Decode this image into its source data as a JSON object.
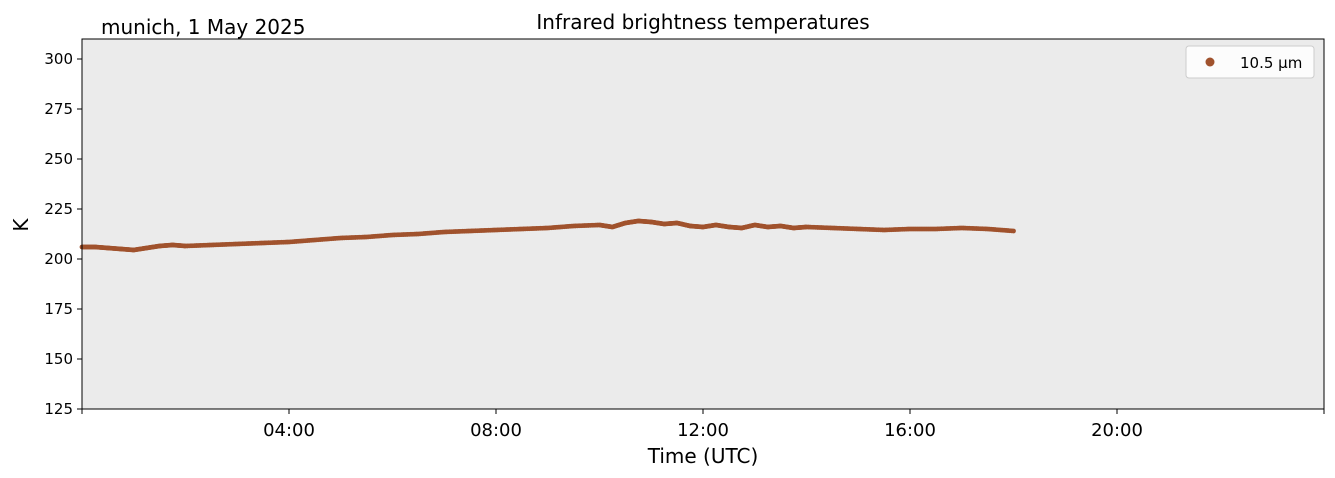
{
  "chart_data": {
    "type": "scatter",
    "title": "Infrared brightness temperatures",
    "subtitle": "munich, 1 May 2025",
    "xlabel": "Time (UTC)",
    "ylabel": "K",
    "xlim_hours": [
      0,
      24
    ],
    "ylim": [
      125,
      310
    ],
    "x_ticks_hours": [
      0,
      4,
      8,
      12,
      16,
      20,
      24
    ],
    "x_tick_labels": [
      "",
      "04:00",
      "08:00",
      "12:00",
      "16:00",
      "20:00",
      ""
    ],
    "y_ticks": [
      125,
      150,
      175,
      200,
      225,
      250,
      275,
      300
    ],
    "grid": false,
    "legend_position": "top-right",
    "plot_background": "#ebebeb",
    "series": [
      {
        "name": "10.5 µm",
        "color": "#a0522d",
        "x_hours": [
          0.0,
          0.25,
          0.5,
          0.75,
          1.0,
          1.25,
          1.5,
          1.75,
          2.0,
          2.5,
          3.0,
          3.5,
          4.0,
          4.5,
          5.0,
          5.5,
          6.0,
          6.5,
          7.0,
          7.5,
          8.0,
          8.5,
          9.0,
          9.5,
          10.0,
          10.25,
          10.5,
          10.75,
          11.0,
          11.25,
          11.5,
          11.75,
          12.0,
          12.25,
          12.5,
          12.75,
          13.0,
          13.25,
          13.5,
          13.75,
          14.0,
          14.5,
          15.0,
          15.5,
          16.0,
          16.5,
          17.0,
          17.5,
          18.0
        ],
        "values": [
          206,
          206,
          205.5,
          205,
          204.5,
          205.5,
          206.5,
          207,
          206.5,
          207,
          207.5,
          208,
          208.5,
          209.5,
          210.5,
          211,
          212,
          212.5,
          213.5,
          214,
          214.5,
          215,
          215.5,
          216.5,
          217,
          216,
          218,
          219,
          218.5,
          217.5,
          218,
          216.5,
          216,
          217,
          216,
          215.5,
          217,
          216,
          216.5,
          215.5,
          216,
          215.5,
          215,
          214.5,
          215,
          215,
          215.5,
          215,
          214
        ]
      }
    ]
  }
}
